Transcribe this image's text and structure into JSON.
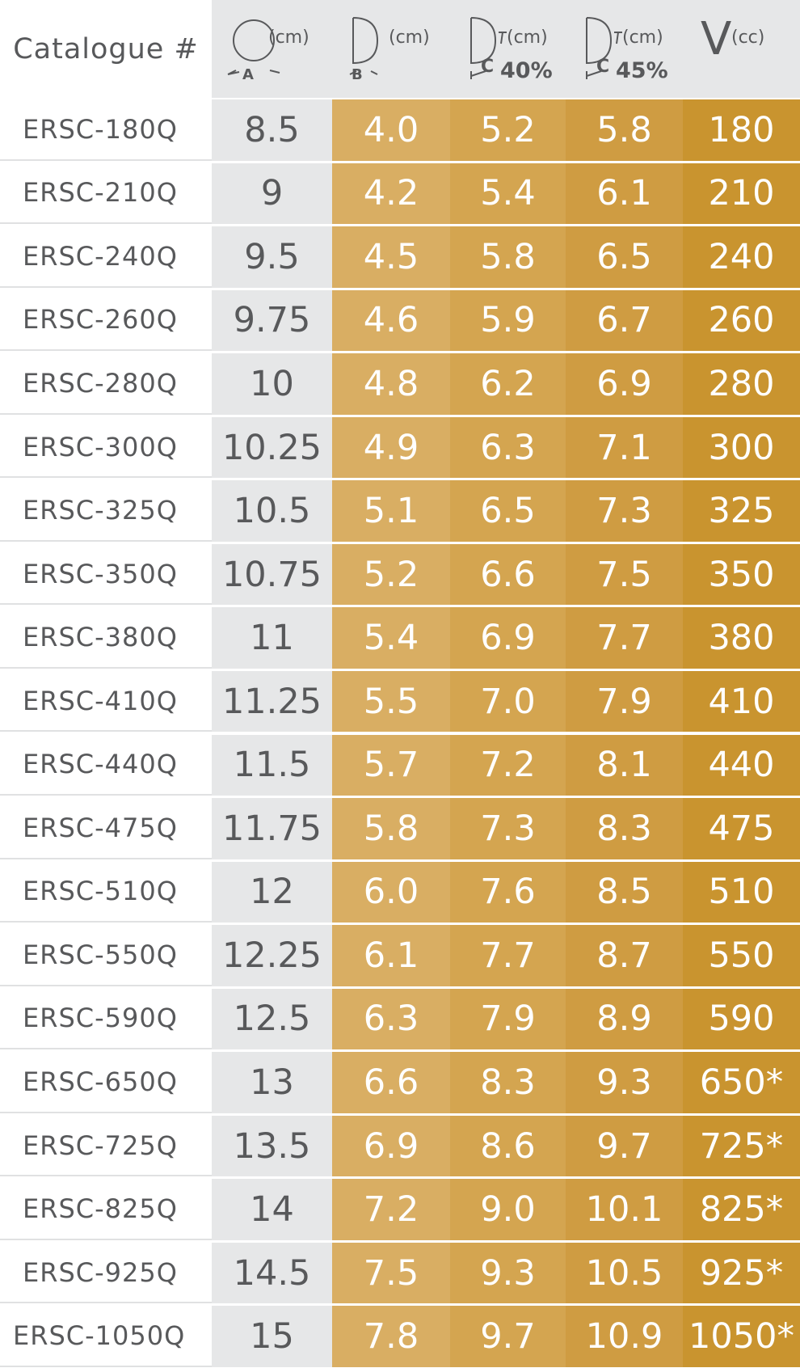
{
  "header": {
    "catalogue": "Catalogue #",
    "columns": [
      {
        "unit": "(cm)",
        "label": "A"
      },
      {
        "unit": "(cm)",
        "label": "B"
      },
      {
        "unit": "(cm)",
        "label": "C",
        "percent": "40%"
      },
      {
        "unit": "(cm)",
        "label": "C",
        "percent": "45%"
      },
      {
        "unit": "(cc)",
        "label": "V"
      }
    ]
  },
  "table": {
    "rows": [
      [
        "ERSC-180Q",
        "8.5",
        "4.0",
        "5.2",
        "5.8",
        "180"
      ],
      [
        "ERSC-210Q",
        "9",
        "4.2",
        "5.4",
        "6.1",
        "210"
      ],
      [
        "ERSC-240Q",
        "9.5",
        "4.5",
        "5.8",
        "6.5",
        "240"
      ],
      [
        "ERSC-260Q",
        "9.75",
        "4.6",
        "5.9",
        "6.7",
        "260"
      ],
      [
        "ERSC-280Q",
        "10",
        "4.8",
        "6.2",
        "6.9",
        "280"
      ],
      [
        "ERSC-300Q",
        "10.25",
        "4.9",
        "6.3",
        "7.1",
        "300"
      ],
      [
        "ERSC-325Q",
        "10.5",
        "5.1",
        "6.5",
        "7.3",
        "325"
      ],
      [
        "ERSC-350Q",
        "10.75",
        "5.2",
        "6.6",
        "7.5",
        "350"
      ],
      [
        "ERSC-380Q",
        "11",
        "5.4",
        "6.9",
        "7.7",
        "380"
      ],
      [
        "ERSC-410Q",
        "11.25",
        "5.5",
        "7.0",
        "7.9",
        "410"
      ],
      [
        "ERSC-440Q",
        "11.5",
        "5.7",
        "7.2",
        "8.1",
        "440"
      ],
      [
        "ERSC-475Q",
        "11.75",
        "5.8",
        "7.3",
        "8.3",
        "475"
      ],
      [
        "ERSC-510Q",
        "12",
        "6.0",
        "7.6",
        "8.5",
        "510"
      ],
      [
        "ERSC-550Q",
        "12.25",
        "6.1",
        "7.7",
        "8.7",
        "550"
      ],
      [
        "ERSC-590Q",
        "12.5",
        "6.3",
        "7.9",
        "8.9",
        "590"
      ],
      [
        "ERSC-650Q",
        "13",
        "6.6",
        "8.3",
        "9.3",
        "650*"
      ],
      [
        "ERSC-725Q",
        "13.5",
        "6.9",
        "8.6",
        "9.7",
        "725*"
      ],
      [
        "ERSC-825Q",
        "14",
        "7.2",
        "9.0",
        "10.1",
        "825*"
      ],
      [
        "ERSC-925Q",
        "14.5",
        "7.5",
        "9.3",
        "10.5",
        "925*"
      ],
      [
        "ERSC-1050Q",
        "15",
        "7.8",
        "9.7",
        "10.9",
        "1050*"
      ]
    ]
  }
}
